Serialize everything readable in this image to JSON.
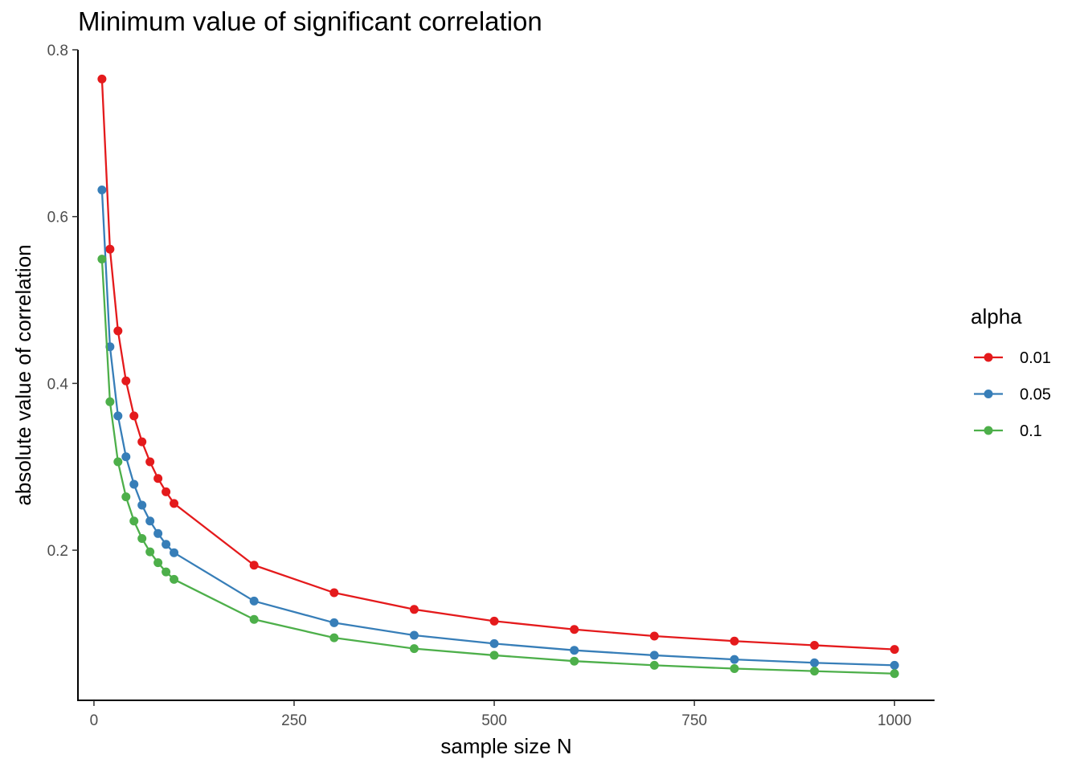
{
  "chart_data": {
    "type": "line",
    "title": "Minimum value of significant correlation",
    "xlabel": "sample size N",
    "ylabel": "absolute value of correlation",
    "xlim": [
      -20,
      1050
    ],
    "ylim": [
      0.02,
      0.8
    ],
    "xticks": [
      0,
      250,
      500,
      750,
      1000
    ],
    "xtick_labels": [
      "0",
      "250",
      "500",
      "750",
      "1000"
    ],
    "yticks": [
      0.2,
      0.4,
      0.6,
      0.8
    ],
    "ytick_labels": [
      "0.2",
      "0.4",
      "0.6",
      "0.8"
    ],
    "x": [
      10,
      20,
      30,
      40,
      50,
      60,
      70,
      80,
      90,
      100,
      200,
      300,
      400,
      500,
      600,
      700,
      800,
      900,
      1000
    ],
    "legend_title": "alpha",
    "legend_position": "right",
    "grid": false,
    "series": [
      {
        "name": "0.01",
        "color": "#e41a1c",
        "values": [
          0.765,
          0.561,
          0.463,
          0.403,
          0.361,
          0.33,
          0.306,
          0.286,
          0.27,
          0.256,
          0.182,
          0.149,
          0.129,
          0.115,
          0.105,
          0.097,
          0.091,
          0.086,
          0.081
        ]
      },
      {
        "name": "0.05",
        "color": "#377eb8",
        "values": [
          0.632,
          0.444,
          0.361,
          0.312,
          0.279,
          0.254,
          0.235,
          0.22,
          0.207,
          0.197,
          0.139,
          0.113,
          0.098,
          0.088,
          0.08,
          0.074,
          0.069,
          0.065,
          0.062
        ]
      },
      {
        "name": "0.1",
        "color": "#4daf4a",
        "values": [
          0.549,
          0.378,
          0.306,
          0.264,
          0.235,
          0.214,
          0.198,
          0.185,
          0.174,
          0.165,
          0.117,
          0.095,
          0.082,
          0.074,
          0.067,
          0.062,
          0.058,
          0.055,
          0.052
        ]
      }
    ]
  }
}
